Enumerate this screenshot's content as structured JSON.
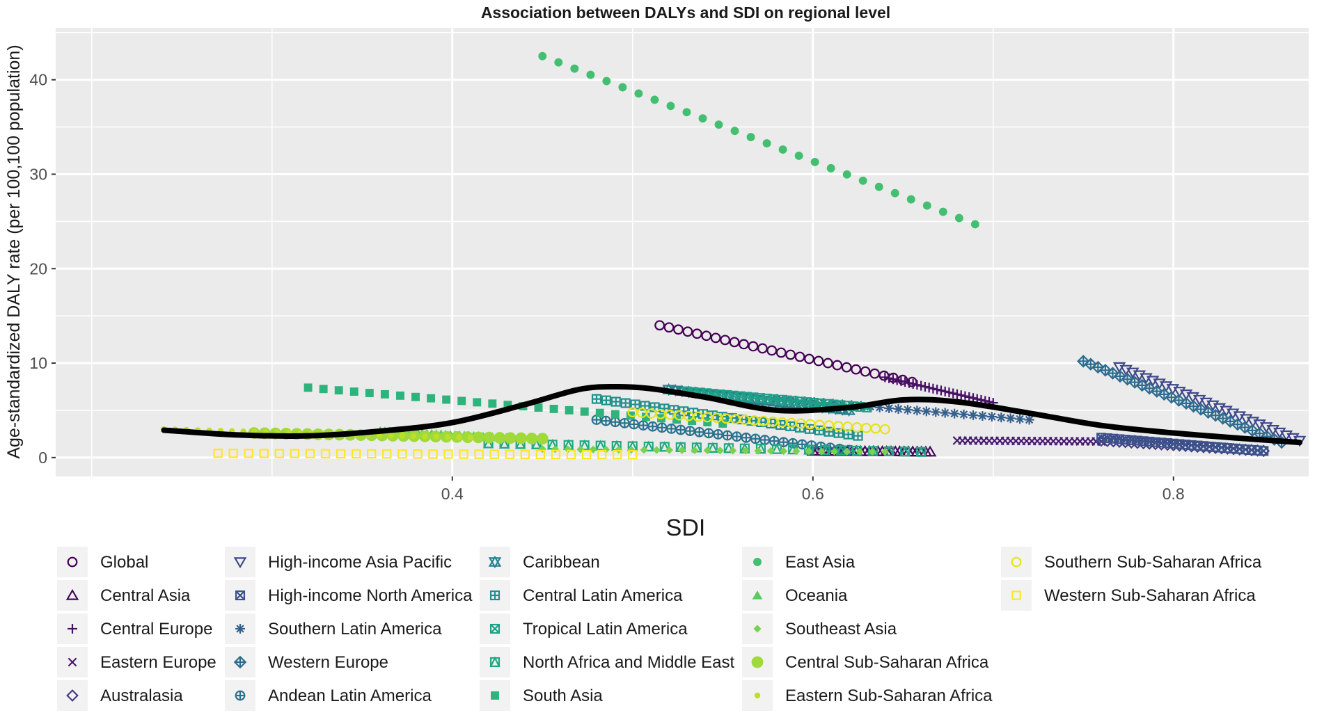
{
  "chart_data": {
    "type": "scatter",
    "title": "Association between DALYs and SDI on regional level",
    "xlabel": "SDI",
    "ylabel": "Age-standardized DALY rate (per 100,100 population)",
    "xlim": [
      0.18,
      0.875
    ],
    "ylim": [
      -2,
      45.5
    ],
    "x_ticks": [
      0.4,
      0.6,
      0.8
    ],
    "x_tick_labels": [
      "0.4",
      "0.6",
      "0.8"
    ],
    "y_ticks": [
      0,
      10,
      20,
      30,
      40
    ],
    "y_tick_labels": [
      "0",
      "10",
      "20",
      "30",
      "40"
    ],
    "grid": true,
    "legend_position": "bottom",
    "series": [
      {
        "name": "Global",
        "color": "#440154",
        "marker": "circle-open",
        "start": [
          0.515,
          14.0
        ],
        "end": [
          0.655,
          8.0
        ],
        "n": 28
      },
      {
        "name": "Central Asia",
        "color": "#46085c",
        "marker": "triangle-open",
        "start": [
          0.6,
          0.7
        ],
        "end": [
          0.665,
          0.6
        ],
        "n": 28
      },
      {
        "name": "Central Europe",
        "color": "#471164",
        "marker": "plus",
        "start": [
          0.64,
          8.5
        ],
        "end": [
          0.7,
          5.8
        ],
        "n": 28
      },
      {
        "name": "Eastern Europe",
        "color": "#47186d",
        "marker": "cross",
        "start": [
          0.68,
          1.8
        ],
        "end": [
          0.76,
          1.7
        ],
        "n": 28
      },
      {
        "name": "Australasia",
        "color": "#433d84",
        "marker": "diamond-open",
        "start": [
          0.76,
          1.8
        ],
        "end": [
          0.85,
          0.7
        ],
        "n": 28
      },
      {
        "name": "High-income Asia Pacific",
        "color": "#3f4889",
        "marker": "triangle-down-open",
        "start": [
          0.77,
          9.6
        ],
        "end": [
          0.87,
          1.8
        ],
        "n": 28
      },
      {
        "name": "High-income North America",
        "color": "#3b528b",
        "marker": "square-x",
        "start": [
          0.76,
          2.1
        ],
        "end": [
          0.85,
          0.7
        ],
        "n": 28
      },
      {
        "name": "Southern Latin America",
        "color": "#35608d",
        "marker": "asterisk",
        "start": [
          0.58,
          6.2
        ],
        "end": [
          0.72,
          4.0
        ],
        "n": 28
      },
      {
        "name": "Western Europe",
        "color": "#2f6c8e",
        "marker": "diamond-plus",
        "start": [
          0.75,
          10.2
        ],
        "end": [
          0.86,
          1.6
        ],
        "n": 28
      },
      {
        "name": "Andean Latin America",
        "color": "#2c728e",
        "marker": "circle-plus",
        "start": [
          0.48,
          4.0
        ],
        "end": [
          0.62,
          0.8
        ],
        "n": 28
      },
      {
        "name": "Caribbean",
        "color": "#27808e",
        "marker": "star-of-david",
        "start": [
          0.52,
          7.2
        ],
        "end": [
          0.62,
          5.0
        ],
        "n": 28
      },
      {
        "name": "Central Latin America",
        "color": "#21908d",
        "marker": "square-plus",
        "start": [
          0.48,
          6.2
        ],
        "end": [
          0.625,
          2.3
        ],
        "n": 28
      },
      {
        "name": "Tropical Latin America",
        "color": "#1fa088",
        "marker": "square-x",
        "start": [
          0.53,
          7.0
        ],
        "end": [
          0.63,
          5.3
        ],
        "n": 28
      },
      {
        "name": "North Africa and Middle East",
        "color": "#22a884",
        "marker": "triangle-square",
        "start": [
          0.42,
          1.5
        ],
        "end": [
          0.66,
          0.6
        ],
        "n": 28
      },
      {
        "name": "South Asia",
        "color": "#2eb37c",
        "marker": "square",
        "start": [
          0.32,
          7.4
        ],
        "end": [
          0.55,
          3.6
        ],
        "n": 28
      },
      {
        "name": "East Asia",
        "color": "#43bf71",
        "marker": "circle",
        "start": [
          0.45,
          42.5
        ],
        "end": [
          0.69,
          24.7
        ],
        "n": 28
      },
      {
        "name": "Oceania",
        "color": "#5ec962",
        "marker": "triangle",
        "start": [
          0.36,
          2.8
        ],
        "end": [
          0.43,
          2.1
        ],
        "n": 28
      },
      {
        "name": "Southeast Asia",
        "color": "#7ad151",
        "marker": "diamond",
        "start": [
          0.45,
          0.9
        ],
        "end": [
          0.64,
          0.6
        ],
        "n": 28
      },
      {
        "name": "Central Sub-Saharan Africa",
        "color": "#9fda3a",
        "marker": "circle-large",
        "start": [
          0.29,
          2.6
        ],
        "end": [
          0.45,
          2.0
        ],
        "n": 28
      },
      {
        "name": "Eastern Sub-Saharan Africa",
        "color": "#bddf26",
        "marker": "circle-small",
        "start": [
          0.24,
          3.0
        ],
        "end": [
          0.41,
          2.1
        ],
        "n": 28
      },
      {
        "name": "Southern Sub-Saharan Africa",
        "color": "#e6e419",
        "marker": "circle-open",
        "start": [
          0.5,
          4.8
        ],
        "end": [
          0.64,
          3.0
        ],
        "n": 28
      },
      {
        "name": "Western Sub-Saharan Africa",
        "color": "#fde725",
        "marker": "square-open",
        "start": [
          0.27,
          0.45
        ],
        "end": [
          0.5,
          0.3
        ],
        "n": 28
      }
    ],
    "trend_line": {
      "color": "#000000",
      "x": [
        0.24,
        0.28,
        0.32,
        0.36,
        0.4,
        0.44,
        0.47,
        0.49,
        0.51,
        0.54,
        0.58,
        0.62,
        0.65,
        0.68,
        0.72,
        0.76,
        0.8,
        0.84,
        0.87
      ],
      "y": [
        2.9,
        2.4,
        2.3,
        2.8,
        3.7,
        5.6,
        7.2,
        7.5,
        7.3,
        6.4,
        5.0,
        5.3,
        6.1,
        5.9,
        4.7,
        3.4,
        2.6,
        2.0,
        1.6
      ]
    }
  }
}
